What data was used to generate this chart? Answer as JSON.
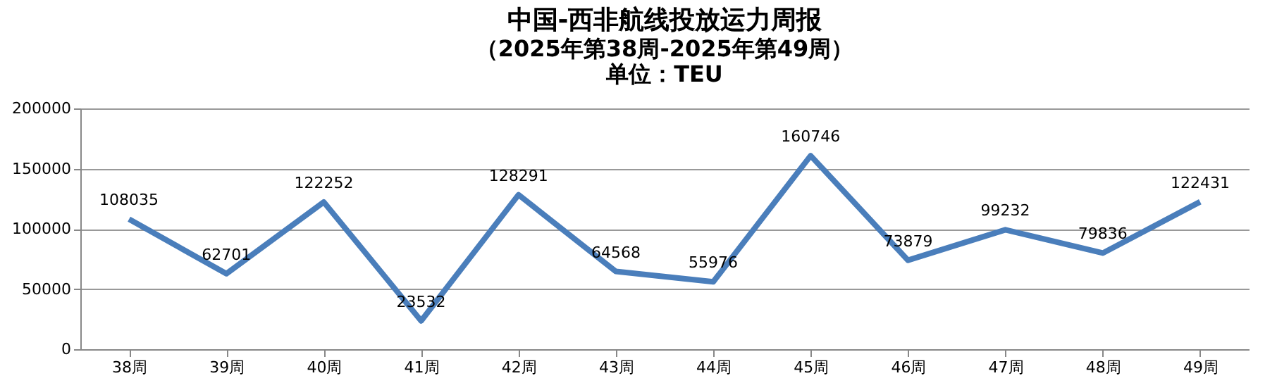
{
  "chart_data": {
    "type": "line",
    "title": "中国-西非航线投放运力周报",
    "subtitle": "（2025年第38周-2025年第49周）",
    "annotations": [
      "单位：TEU"
    ],
    "categories": [
      "38周",
      "39周",
      "40周",
      "41周",
      "42周",
      "43周",
      "44周",
      "45周",
      "46周",
      "47周",
      "48周",
      "49周"
    ],
    "series": [
      {
        "color": "#4a7ebb",
        "values": [
          108035,
          62701,
          122252,
          23532,
          128291,
          64568,
          55976,
          160746,
          73879,
          99232,
          79836,
          122431
        ]
      }
    ],
    "ylim": [
      0,
      200000
    ],
    "yticks": [
      0,
      50000,
      100000,
      150000,
      200000
    ],
    "grid": "y",
    "data_labels": true,
    "legend": false,
    "marker": "none",
    "line_style": "solid"
  }
}
